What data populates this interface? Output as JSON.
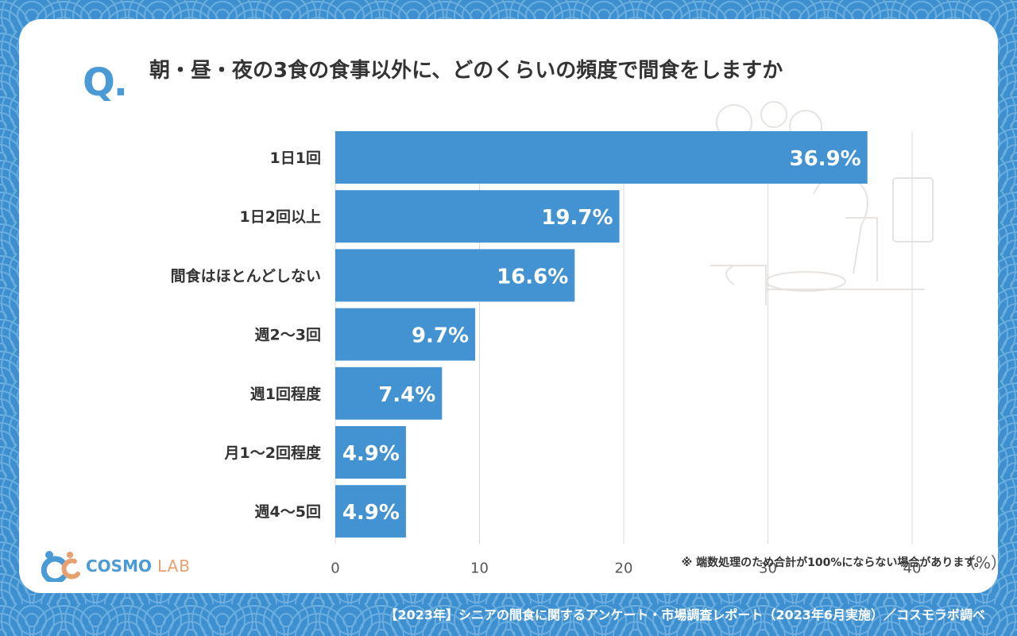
{
  "header": {
    "q_mark": "Q.",
    "title": "朝・昼・夜の3食の食事以外に、どのくらいの頻度で間食をしますか"
  },
  "chart_data": {
    "type": "bar",
    "orientation": "horizontal",
    "categories": [
      "1日1回",
      "1日2回以上",
      "間食はほとんどしない",
      "週2〜3回",
      "週1回程度",
      "月1〜2回程度",
      "週4〜5回"
    ],
    "values": [
      36.9,
      19.7,
      16.6,
      9.7,
      7.4,
      4.9,
      4.9
    ],
    "value_labels": [
      "36.9%",
      "19.7%",
      "16.6%",
      "9.7%",
      "7.4%",
      "4.9%",
      "4.9%"
    ],
    "xlim": [
      0,
      40
    ],
    "xticks": [
      0,
      10,
      20,
      30,
      40
    ],
    "xtick_labels": [
      "0",
      "10",
      "20",
      "30",
      "40"
    ],
    "unit": "（%）",
    "grid": true,
    "bar_color": "#4393d3"
  },
  "note": "※ 端数処理のため合計が100%にならない場合があります。",
  "logo": {
    "main": "COSMO",
    "sub": "LAB"
  },
  "footer": "【2023年】シニアの間食に関するアンケート・市場調査レポート（2023年6月実施）／コスモラボ調べ",
  "colors": {
    "background": "#3e8fcf",
    "accent": "#4a9ad6",
    "logo_accent": "#e8a070"
  }
}
